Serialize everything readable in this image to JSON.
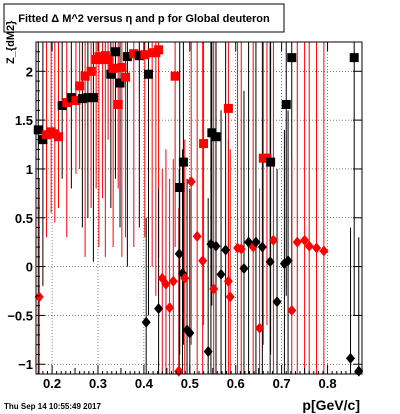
{
  "chart_data": {
    "type": "scatter",
    "title": "Fitted Δ M^2 versus η and p for Global deuteron",
    "xlabel": "p[GeV/c]",
    "ylabel": "Z_{dM2}",
    "xlim": [
      0.165,
      0.875
    ],
    "ylim": [
      -1.1,
      2.3
    ],
    "x_ticks": [
      0.2,
      0.3,
      0.4,
      0.5,
      0.6,
      0.7,
      0.8
    ],
    "x_tick_labels": [
      "0.2",
      "0.3",
      "0.4",
      "0.5",
      "0.6",
      "0.7",
      "0.8"
    ],
    "y_ticks": [
      -1,
      -0.5,
      0,
      0.5,
      1,
      1.5,
      2
    ],
    "y_tick_labels": [
      "−1",
      "−0.5",
      "0",
      "0.5",
      "1",
      "1.5",
      "2"
    ],
    "grid": "dashed",
    "timestamp": "Thu Sep 14 10:55:49 2017",
    "series": [
      {
        "marker": "square",
        "points": [
          {
            "x": 0.17,
            "y": 1.4,
            "lo": -1.1,
            "hi": 2.3,
            "color": "black"
          },
          {
            "x": 0.18,
            "y": 1.3,
            "lo": -0.2,
            "hi": 2.3,
            "color": "black"
          },
          {
            "x": 0.188,
            "y": 1.35,
            "lo": 0.3,
            "hi": 2.3,
            "color": "red"
          },
          {
            "x": 0.198,
            "y": 1.38,
            "lo": 0.55,
            "hi": 2.3,
            "color": "red"
          },
          {
            "x": 0.206,
            "y": 1.36,
            "lo": 0.45,
            "hi": 2.3,
            "color": "red"
          },
          {
            "x": 0.214,
            "y": 1.33,
            "lo": 0.6,
            "hi": 2.3,
            "color": "red"
          },
          {
            "x": 0.222,
            "y": 1.65,
            "lo": 0.9,
            "hi": 2.3,
            "color": "black"
          },
          {
            "x": 0.232,
            "y": 1.68,
            "lo": 0.3,
            "hi": 2.3,
            "color": "red"
          },
          {
            "x": 0.242,
            "y": 1.73,
            "lo": 0.8,
            "hi": 2.3,
            "color": "black"
          },
          {
            "x": 0.252,
            "y": 1.7,
            "lo": 0.95,
            "hi": 2.3,
            "color": "red"
          },
          {
            "x": 0.26,
            "y": 1.85,
            "lo": 1.0,
            "hi": 2.3,
            "color": "red"
          },
          {
            "x": 0.266,
            "y": 1.72,
            "lo": 0.4,
            "hi": 2.3,
            "color": "black"
          },
          {
            "x": 0.272,
            "y": 1.95,
            "lo": 0.1,
            "hi": 2.3,
            "color": "red"
          },
          {
            "x": 0.278,
            "y": 1.73,
            "lo": 0.5,
            "hi": 2.3,
            "color": "black"
          },
          {
            "x": 0.285,
            "y": 2.0,
            "lo": 0.6,
            "hi": 2.3,
            "color": "red"
          },
          {
            "x": 0.29,
            "y": 1.73,
            "lo": 0.05,
            "hi": 2.3,
            "color": "black"
          },
          {
            "x": 0.296,
            "y": 2.12,
            "lo": 0.8,
            "hi": 2.3,
            "color": "red"
          },
          {
            "x": 0.302,
            "y": 2.15,
            "lo": 0.2,
            "hi": 2.3,
            "color": "red"
          },
          {
            "x": 0.31,
            "y": 2.12,
            "lo": 0.7,
            "hi": 2.3,
            "color": "red"
          },
          {
            "x": 0.316,
            "y": 2.16,
            "lo": 0.1,
            "hi": 2.3,
            "color": "red"
          },
          {
            "x": 0.322,
            "y": 2.12,
            "lo": 1.3,
            "hi": 2.3,
            "color": "red"
          },
          {
            "x": 0.328,
            "y": 1.97,
            "lo": 0.6,
            "hi": 2.3,
            "color": "black"
          },
          {
            "x": 0.333,
            "y": 2.03,
            "lo": 0.2,
            "hi": 2.3,
            "color": "red"
          },
          {
            "x": 0.338,
            "y": 2.2,
            "lo": 0.9,
            "hi": 2.3,
            "color": "black"
          },
          {
            "x": 0.344,
            "y": 1.66,
            "lo": 0.8,
            "hi": 2.3,
            "color": "red"
          },
          {
            "x": 0.348,
            "y": 1.88,
            "lo": 0.4,
            "hi": 2.3,
            "color": "black"
          },
          {
            "x": 0.352,
            "y": 2.04,
            "lo": 0.1,
            "hi": 2.3,
            "color": "red"
          },
          {
            "x": 0.36,
            "y": 1.94,
            "lo": 0.3,
            "hi": 2.3,
            "color": "red"
          },
          {
            "x": 0.364,
            "y": 2.15,
            "lo": 0.0,
            "hi": 2.3,
            "color": "black"
          },
          {
            "x": 0.378,
            "y": 2.18,
            "lo": 0.2,
            "hi": 2.3,
            "color": "red"
          },
          {
            "x": 0.39,
            "y": 2.16,
            "lo": 0.4,
            "hi": 2.3,
            "color": "black"
          },
          {
            "x": 0.402,
            "y": 2.17,
            "lo": 0.3,
            "hi": 2.3,
            "color": "red"
          },
          {
            "x": 0.41,
            "y": 1.97,
            "lo": -0.5,
            "hi": 2.3,
            "color": "black"
          },
          {
            "x": 0.418,
            "y": 2.19,
            "lo": 0.0,
            "hi": 2.3,
            "color": "red"
          },
          {
            "x": 0.426,
            "y": 2.19,
            "lo": -0.3,
            "hi": 2.3,
            "color": "red"
          },
          {
            "x": 0.432,
            "y": 2.22,
            "lo": 0.1,
            "hi": 2.3,
            "color": "red"
          },
          {
            "x": 0.468,
            "y": 1.95,
            "lo": 0.2,
            "hi": 2.3,
            "color": "red"
          },
          {
            "x": 0.478,
            "y": 0.81,
            "lo": -0.9,
            "hi": 2.3,
            "color": "black"
          },
          {
            "x": 0.486,
            "y": 1.07,
            "lo": -0.8,
            "hi": 2.3,
            "color": "black"
          },
          {
            "x": 0.53,
            "y": 1.26,
            "lo": -0.6,
            "hi": 2.3,
            "color": "red"
          },
          {
            "x": 0.548,
            "y": 1.37,
            "lo": -0.4,
            "hi": 2.3,
            "color": "black"
          },
          {
            "x": 0.557,
            "y": 1.33,
            "lo": -0.3,
            "hi": 2.3,
            "color": "black"
          },
          {
            "x": 0.584,
            "y": 1.62,
            "lo": -0.2,
            "hi": 2.3,
            "color": "red"
          },
          {
            "x": 0.66,
            "y": 1.11,
            "lo": -0.8,
            "hi": 2.3,
            "color": "red"
          },
          {
            "x": 0.668,
            "y": 1.11,
            "lo": -0.6,
            "hi": 2.3,
            "color": "red"
          },
          {
            "x": 0.676,
            "y": 1.07,
            "lo": -0.9,
            "hi": 2.3,
            "color": "black"
          },
          {
            "x": 0.71,
            "y": 1.66,
            "lo": -0.3,
            "hi": 2.3,
            "color": "black"
          },
          {
            "x": 0.722,
            "y": 2.14,
            "lo": -0.5,
            "hi": 2.3,
            "color": "black"
          },
          {
            "x": 0.858,
            "y": 2.14,
            "lo": -0.5,
            "hi": 2.3,
            "color": "black"
          }
        ]
      },
      {
        "marker": "diamond",
        "points": [
          {
            "x": 0.172,
            "y": -0.31,
            "lo": -1.1,
            "hi": 0.9,
            "color": "red"
          },
          {
            "x": 0.405,
            "y": -0.57,
            "lo": -1.1,
            "hi": 0.5,
            "color": "black"
          },
          {
            "x": 0.432,
            "y": -0.43,
            "lo": -1.1,
            "hi": 0.8,
            "color": "black"
          },
          {
            "x": 0.44,
            "y": -0.12,
            "lo": -1.1,
            "hi": 1.0,
            "color": "red"
          },
          {
            "x": 0.448,
            "y": -0.18,
            "lo": -1.1,
            "hi": 1.2,
            "color": "red"
          },
          {
            "x": 0.456,
            "y": -0.42,
            "lo": -1.1,
            "hi": 0.9,
            "color": "red"
          },
          {
            "x": 0.464,
            "y": -0.15,
            "lo": -1.1,
            "hi": 1.1,
            "color": "red"
          },
          {
            "x": 0.476,
            "y": -1.07,
            "lo": -1.1,
            "hi": 0.6,
            "color": "red"
          },
          {
            "x": 0.477,
            "y": 0.13,
            "lo": -1.1,
            "hi": 1.0,
            "color": "black"
          },
          {
            "x": 0.484,
            "y": -0.07,
            "lo": -1.1,
            "hi": 1.2,
            "color": "black"
          },
          {
            "x": 0.489,
            "y": -0.12,
            "lo": -1.1,
            "hi": 1.3,
            "color": "red"
          },
          {
            "x": 0.494,
            "y": -0.65,
            "lo": -1.1,
            "hi": 0.9,
            "color": "black"
          },
          {
            "x": 0.5,
            "y": -0.68,
            "lo": -1.1,
            "hi": 0.8,
            "color": "black"
          },
          {
            "x": 0.503,
            "y": 0.87,
            "lo": -0.8,
            "hi": 2.3,
            "color": "red"
          },
          {
            "x": 0.516,
            "y": 0.31,
            "lo": -1.1,
            "hi": 2.3,
            "color": "red"
          },
          {
            "x": 0.528,
            "y": 0.06,
            "lo": -1.1,
            "hi": 2.3,
            "color": "red"
          },
          {
            "x": 0.54,
            "y": -0.87,
            "lo": -1.1,
            "hi": 0.7,
            "color": "black"
          },
          {
            "x": 0.546,
            "y": 0.23,
            "lo": -1.1,
            "hi": 2.3,
            "color": "black"
          },
          {
            "x": 0.552,
            "y": -0.23,
            "lo": -1.1,
            "hi": 2.3,
            "color": "red"
          },
          {
            "x": 0.557,
            "y": 0.21,
            "lo": -1.1,
            "hi": 2.3,
            "color": "black"
          },
          {
            "x": 0.568,
            "y": -0.08,
            "lo": -1.1,
            "hi": 1.6,
            "color": "black"
          },
          {
            "x": 0.578,
            "y": 0.17,
            "lo": -1.1,
            "hi": 2.3,
            "color": "black"
          },
          {
            "x": 0.584,
            "y": -0.15,
            "lo": -1.1,
            "hi": 1.3,
            "color": "red"
          },
          {
            "x": 0.588,
            "y": -0.31,
            "lo": -1.1,
            "hi": 1.2,
            "color": "red"
          },
          {
            "x": 0.604,
            "y": 0.19,
            "lo": -1.1,
            "hi": 2.3,
            "color": "red"
          },
          {
            "x": 0.612,
            "y": 0.18,
            "lo": -1.1,
            "hi": 2.3,
            "color": "red"
          },
          {
            "x": 0.618,
            "y": -0.02,
            "lo": -1.1,
            "hi": 1.8,
            "color": "black"
          },
          {
            "x": 0.628,
            "y": 0.25,
            "lo": -1.1,
            "hi": 2.3,
            "color": "black"
          },
          {
            "x": 0.638,
            "y": 0.2,
            "lo": -1.1,
            "hi": 2.3,
            "color": "red"
          },
          {
            "x": 0.644,
            "y": 0.25,
            "lo": -1.1,
            "hi": 2.3,
            "color": "black"
          },
          {
            "x": 0.652,
            "y": -0.63,
            "lo": -1.1,
            "hi": 0.8,
            "color": "red"
          },
          {
            "x": 0.658,
            "y": 0.2,
            "lo": -1.1,
            "hi": 2.3,
            "color": "black"
          },
          {
            "x": 0.675,
            "y": 0.05,
            "lo": -1.1,
            "hi": 2.3,
            "color": "black"
          },
          {
            "x": 0.682,
            "y": 0.27,
            "lo": -1.1,
            "hi": 2.3,
            "color": "red"
          },
          {
            "x": 0.69,
            "y": -0.36,
            "lo": -1.1,
            "hi": 1.0,
            "color": "black"
          },
          {
            "x": 0.706,
            "y": 0.03,
            "lo": -1.1,
            "hi": 1.4,
            "color": "black"
          },
          {
            "x": 0.714,
            "y": 0.06,
            "lo": -1.1,
            "hi": 1.6,
            "color": "black"
          },
          {
            "x": 0.722,
            "y": -0.45,
            "lo": -1.1,
            "hi": 1.1,
            "color": "red"
          },
          {
            "x": 0.734,
            "y": 0.25,
            "lo": -1.1,
            "hi": 2.3,
            "color": "red"
          },
          {
            "x": 0.75,
            "y": 0.27,
            "lo": -1.1,
            "hi": 2.3,
            "color": "red"
          },
          {
            "x": 0.76,
            "y": 0.21,
            "lo": -1.1,
            "hi": 2.3,
            "color": "red"
          },
          {
            "x": 0.776,
            "y": 0.19,
            "lo": -1.1,
            "hi": 2.3,
            "color": "red"
          },
          {
            "x": 0.792,
            "y": 0.16,
            "lo": -1.1,
            "hi": 2.3,
            "color": "red"
          },
          {
            "x": 0.85,
            "y": -0.94,
            "lo": -1.1,
            "hi": 0.4,
            "color": "black"
          },
          {
            "x": 0.868,
            "y": -1.07,
            "lo": -1.1,
            "hi": 0.3,
            "color": "black"
          }
        ]
      }
    ],
    "colors": {
      "red": "#ff0000",
      "black": "#000000",
      "grid": "#000000",
      "frame": "#000000"
    }
  }
}
